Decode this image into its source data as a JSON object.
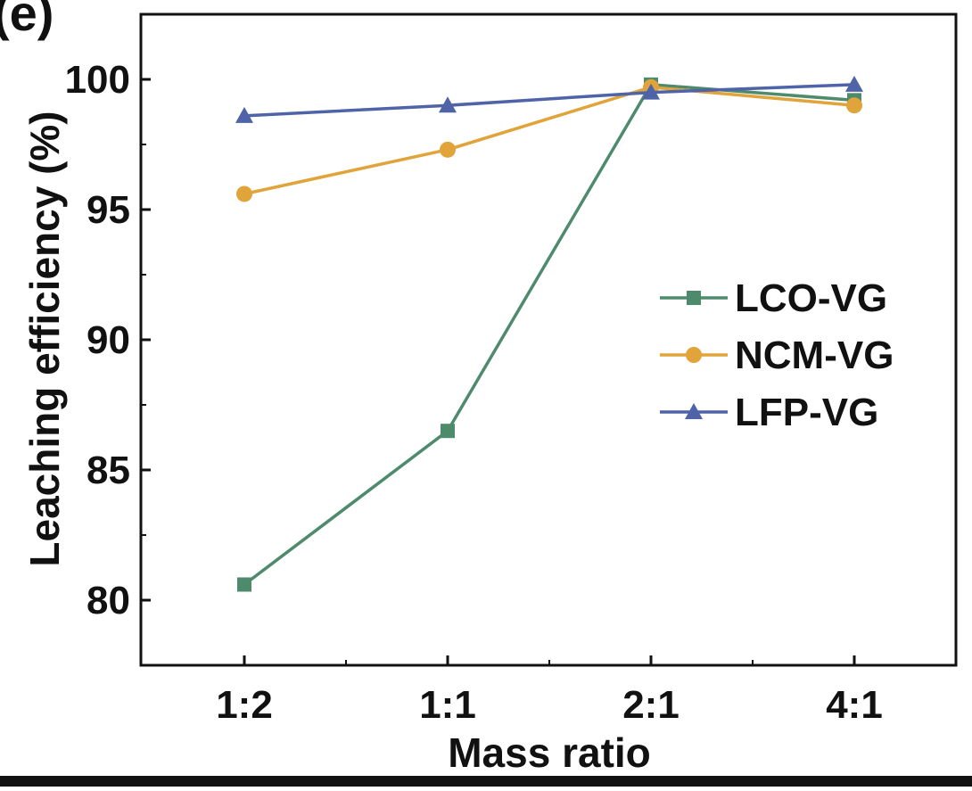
{
  "panel_label": "(e)",
  "colors": {
    "LCO-VG": "#4e8a6c",
    "NCM-VG": "#e0a43a",
    "LFP-VG": "#4f64a8",
    "axis": "#111111"
  },
  "chart_data": {
    "type": "line",
    "title": "",
    "xlabel": "Mass ratio",
    "ylabel": "Leaching efficiency (%)",
    "categories": [
      "1:2",
      "1:1",
      "2:1",
      "4:1"
    ],
    "ylim": [
      77.5,
      102.5
    ],
    "yticks": [
      80,
      85,
      90,
      95,
      100
    ],
    "grid": false,
    "legend_position": "right",
    "series": [
      {
        "name": "LCO-VG",
        "marker": "square",
        "values": [
          80.6,
          86.5,
          99.8,
          99.2
        ]
      },
      {
        "name": "NCM-VG",
        "marker": "circle",
        "values": [
          95.6,
          97.3,
          99.7,
          99.0
        ]
      },
      {
        "name": "LFP-VG",
        "marker": "triangle",
        "values": [
          98.6,
          99.0,
          99.5,
          99.8
        ]
      }
    ]
  }
}
